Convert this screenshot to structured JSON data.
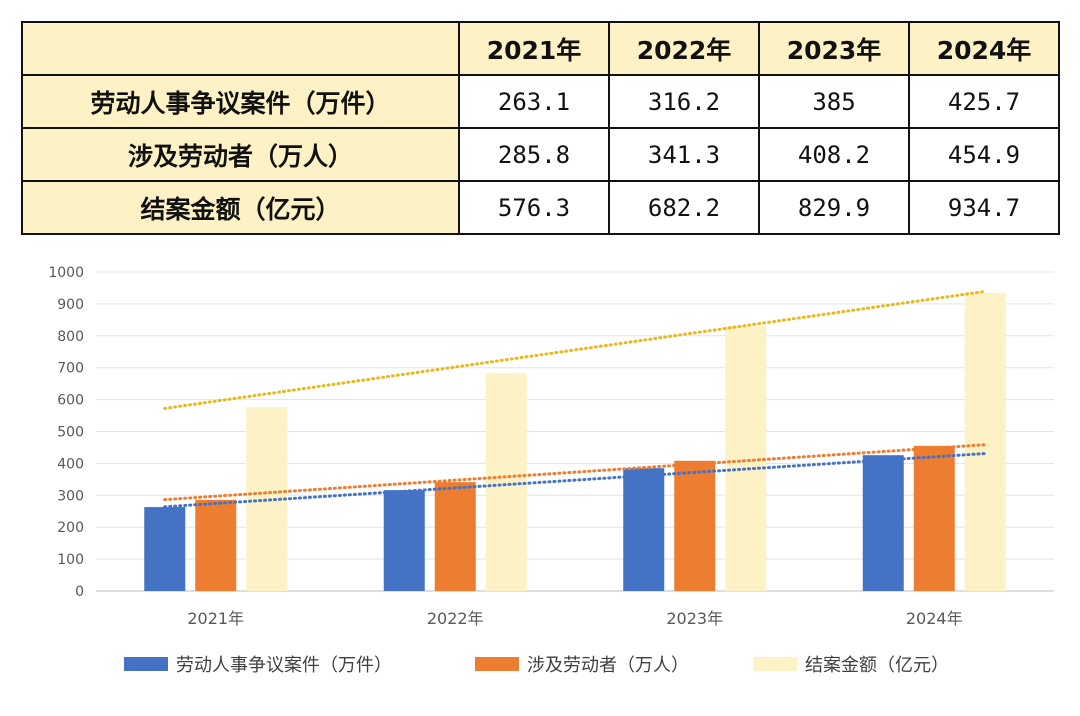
{
  "table": {
    "header": [
      "",
      "2021年",
      "2022年",
      "2023年",
      "2024年"
    ],
    "rows": [
      {
        "label": "劳动人事争议案件（万件）",
        "values": [
          "263.1",
          "316.2",
          "385",
          "425.7"
        ]
      },
      {
        "label": "涉及劳动者（万人）",
        "values": [
          "285.8",
          "341.3",
          "408.2",
          "454.9"
        ]
      },
      {
        "label": "结案金额（亿元）",
        "values": [
          "576.3",
          "682.2",
          "829.9",
          "934.7"
        ]
      }
    ]
  },
  "chart_data": {
    "type": "bar",
    "categories": [
      "2021年",
      "2022年",
      "2023年",
      "2024年"
    ],
    "series": [
      {
        "name": "劳动人事争议案件（万件）",
        "values": [
          263.1,
          316.2,
          385,
          425.7
        ],
        "color": "#4472c4",
        "trend_color": "#4472c4"
      },
      {
        "name": "涉及劳动者（万人）",
        "values": [
          285.8,
          341.3,
          408.2,
          454.9
        ],
        "color": "#ed7d31",
        "trend_color": "#ed7d31"
      },
      {
        "name": "结案金额（亿元）",
        "values": [
          576.3,
          682.2,
          829.9,
          934.7
        ],
        "color": "#fdf1c6",
        "trend_color": "#e8b81a"
      }
    ],
    "trendlines": "linear, dotted, one per series",
    "ylim": [
      0,
      1000
    ],
    "yticks": [
      0,
      100,
      200,
      300,
      400,
      500,
      600,
      700,
      800,
      900,
      1000
    ],
    "grid": true,
    "legend": "bottom"
  }
}
